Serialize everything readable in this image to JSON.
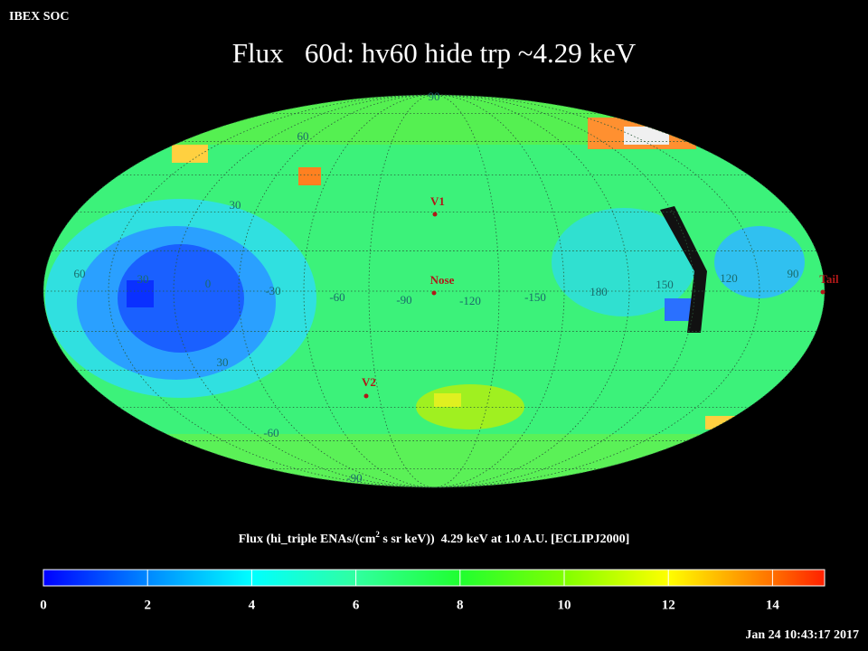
{
  "header": {
    "org": "IBEX SOC",
    "title": "Flux   60d: hv60 hide trp ~4.29 keV"
  },
  "map_labels": [
    "90",
    "60",
    "30",
    "60",
    "30",
    "0",
    "-30",
    "-60",
    "-90",
    "-120",
    "-150",
    "180",
    "150",
    "120",
    "90",
    "30",
    "-60",
    "-90"
  ],
  "markers": [
    "V1",
    "Nose",
    "V2",
    "Tail"
  ],
  "colorbar": {
    "caption_before": "Flux (hi_triple ENAs/(cm",
    "caption_sup": "2",
    "caption_after": " s sr keV))  4.29 keV at 1.0 A.U. [ECLIPJ2000]",
    "range": [
      0,
      15
    ],
    "ticks": [
      0,
      2,
      4,
      6,
      8,
      10,
      12,
      14
    ],
    "stops": [
      {
        "value": 0,
        "color": "#0000ff"
      },
      {
        "value": 2,
        "color": "#0088ff"
      },
      {
        "value": 4,
        "color": "#00ffff"
      },
      {
        "value": 6,
        "color": "#30ffa0"
      },
      {
        "value": 8,
        "color": "#20ff30"
      },
      {
        "value": 10,
        "color": "#80ff00"
      },
      {
        "value": 12,
        "color": "#ffff00"
      },
      {
        "value": 14,
        "color": "#ff7000"
      },
      {
        "value": 15,
        "color": "#ff2000"
      }
    ]
  },
  "footer": {
    "timestamp": "Jan 24 10:43:17 2017"
  }
}
